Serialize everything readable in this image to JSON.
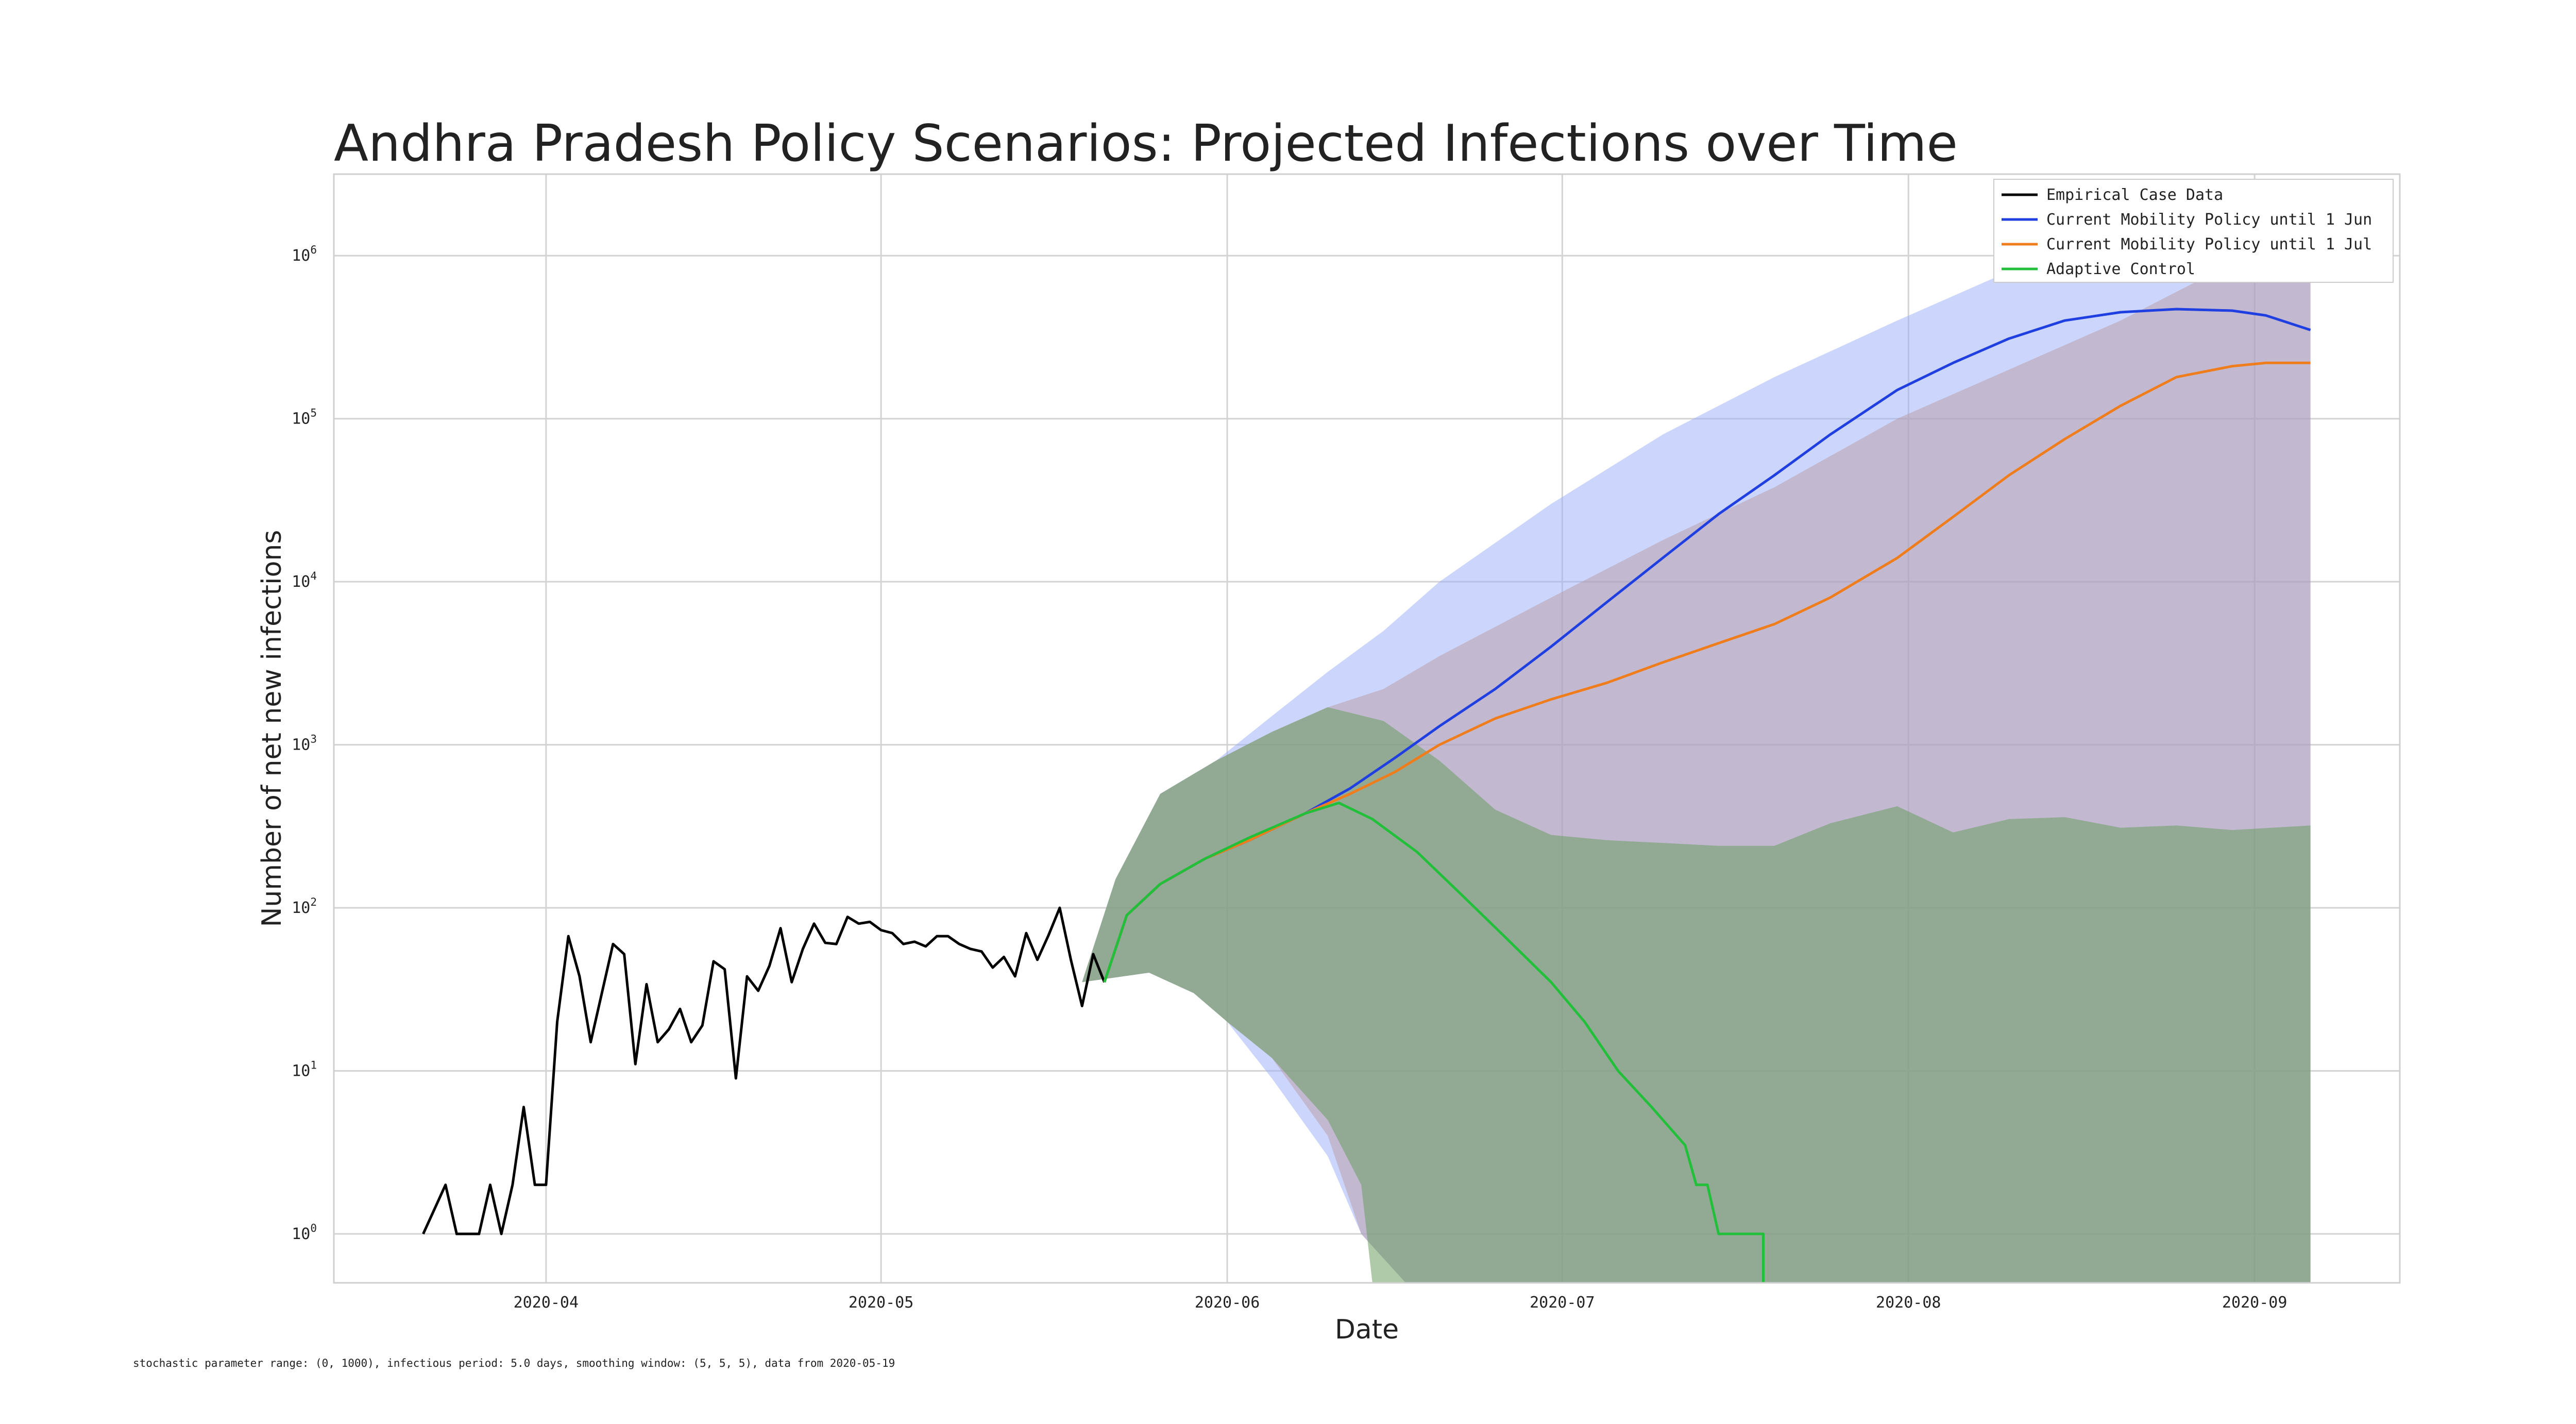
{
  "chart_data": {
    "type": "line",
    "title": "Andhra Pradesh Policy Scenarios: Projected Infections over Time",
    "xlabel": "Date",
    "ylabel": "Number of net new infections",
    "yscale": "log",
    "x_range": [
      "2020-03-13",
      "2020-09-14"
    ],
    "y_range_log10": [
      -0.3,
      6.5
    ],
    "grid": true,
    "legend_position": "top-right",
    "x_ticks": [
      "2020-04-01",
      "2020-05-01",
      "2020-06-01",
      "2020-07-01",
      "2020-08-01",
      "2020-09-01"
    ],
    "x_tick_labels": [
      "2020-04",
      "2020-05",
      "2020-06",
      "2020-07",
      "2020-08",
      "2020-09"
    ],
    "y_ticks_log10": [
      0,
      1,
      2,
      3,
      4,
      5,
      6
    ],
    "y_tick_base": "10",
    "y_tick_exponents": [
      "0",
      "1",
      "2",
      "3",
      "4",
      "5",
      "6"
    ],
    "footnote": "stochastic parameter range: (0, 1000), infectious period: 5.0 days, smoothing window: (5, 5, 5), data from 2020-05-19",
    "bands": [
      {
        "scenario": "Current Mobility Policy until 1 Jun",
        "color": "#9aaefa",
        "opacity": 0.5,
        "upper": [
          [
            "2020-05-19",
            35
          ],
          [
            "2020-05-22",
            150
          ],
          [
            "2020-05-26",
            500
          ],
          [
            "2020-05-31",
            800
          ],
          [
            "2020-06-05",
            1500
          ],
          [
            "2020-06-10",
            2800
          ],
          [
            "2020-06-15",
            5000
          ],
          [
            "2020-06-20",
            10000
          ],
          [
            "2020-06-30",
            30000
          ],
          [
            "2020-07-10",
            80000
          ],
          [
            "2020-07-20",
            180000
          ],
          [
            "2020-07-31",
            400000
          ],
          [
            "2020-08-10",
            800000
          ],
          [
            "2020-08-20",
            1200000
          ],
          [
            "2020-08-30",
            1300000
          ],
          [
            "2020-09-06",
            1300000
          ]
        ],
        "lower": [
          [
            "2020-05-19",
            35
          ],
          [
            "2020-05-25",
            40
          ],
          [
            "2020-05-29",
            30
          ],
          [
            "2020-06-01",
            20
          ],
          [
            "2020-06-05",
            9
          ],
          [
            "2020-06-10",
            3
          ],
          [
            "2020-06-13",
            1
          ],
          [
            "2020-06-17",
            0.5
          ],
          [
            "2020-09-06",
            0.5
          ]
        ]
      },
      {
        "scenario": "Current Mobility Policy until 1 Jul",
        "color": "#b89ba6",
        "opacity": 0.5,
        "upper": [
          [
            "2020-05-19",
            35
          ],
          [
            "2020-05-22",
            150
          ],
          [
            "2020-05-26",
            500
          ],
          [
            "2020-05-31",
            800
          ],
          [
            "2020-06-05",
            1200
          ],
          [
            "2020-06-10",
            1700
          ],
          [
            "2020-06-15",
            2200
          ],
          [
            "2020-06-20",
            3500
          ],
          [
            "2020-06-30",
            8000
          ],
          [
            "2020-07-10",
            18000
          ],
          [
            "2020-07-20",
            38000
          ],
          [
            "2020-07-31",
            100000
          ],
          [
            "2020-08-10",
            200000
          ],
          [
            "2020-08-20",
            400000
          ],
          [
            "2020-08-30",
            900000
          ],
          [
            "2020-09-06",
            1000000
          ]
        ],
        "lower": [
          [
            "2020-05-19",
            35
          ],
          [
            "2020-05-25",
            40
          ],
          [
            "2020-05-29",
            30
          ],
          [
            "2020-06-01",
            20
          ],
          [
            "2020-06-05",
            12
          ],
          [
            "2020-06-10",
            4
          ],
          [
            "2020-06-13",
            1
          ],
          [
            "2020-06-17",
            0.5
          ],
          [
            "2020-09-06",
            0.5
          ]
        ]
      },
      {
        "scenario": "Adaptive Control",
        "color": "#6c9e62",
        "opacity": 0.55,
        "upper": [
          [
            "2020-05-19",
            35
          ],
          [
            "2020-05-22",
            150
          ],
          [
            "2020-05-26",
            500
          ],
          [
            "2020-05-31",
            800
          ],
          [
            "2020-06-05",
            1200
          ],
          [
            "2020-06-10",
            1700
          ],
          [
            "2020-06-15",
            1400
          ],
          [
            "2020-06-20",
            800
          ],
          [
            "2020-06-25",
            400
          ],
          [
            "2020-06-30",
            280
          ],
          [
            "2020-07-05",
            260
          ],
          [
            "2020-07-10",
            250
          ],
          [
            "2020-07-15",
            240
          ],
          [
            "2020-07-20",
            240
          ],
          [
            "2020-07-25",
            330
          ],
          [
            "2020-07-31",
            420
          ],
          [
            "2020-08-05",
            290
          ],
          [
            "2020-08-10",
            350
          ],
          [
            "2020-08-15",
            360
          ],
          [
            "2020-08-20",
            310
          ],
          [
            "2020-08-25",
            320
          ],
          [
            "2020-08-30",
            300
          ],
          [
            "2020-09-06",
            320
          ]
        ],
        "lower": [
          [
            "2020-05-19",
            35
          ],
          [
            "2020-05-25",
            40
          ],
          [
            "2020-05-29",
            30
          ],
          [
            "2020-06-01",
            20
          ],
          [
            "2020-06-05",
            12
          ],
          [
            "2020-06-10",
            5
          ],
          [
            "2020-06-13",
            2
          ],
          [
            "2020-06-14",
            0.5
          ],
          [
            "2020-09-06",
            0.5
          ]
        ]
      }
    ],
    "series": [
      {
        "name": "Empirical Case Data",
        "color": "#000000",
        "points": [
          [
            "2020-03-21",
            1
          ],
          [
            "2020-03-23",
            2
          ],
          [
            "2020-03-24",
            1
          ],
          [
            "2020-03-26",
            1
          ],
          [
            "2020-03-27",
            2
          ],
          [
            "2020-03-28",
            1
          ],
          [
            "2020-03-29",
            2
          ],
          [
            "2020-03-30",
            6
          ],
          [
            "2020-03-31",
            2
          ],
          [
            "2020-04-01",
            2
          ],
          [
            "2020-04-02",
            20
          ],
          [
            "2020-04-03",
            67
          ],
          [
            "2020-04-04",
            38
          ],
          [
            "2020-04-05",
            15
          ],
          [
            "2020-04-06",
            30
          ],
          [
            "2020-04-07",
            60
          ],
          [
            "2020-04-08",
            52
          ],
          [
            "2020-04-09",
            11
          ],
          [
            "2020-04-10",
            34
          ],
          [
            "2020-04-11",
            15
          ],
          [
            "2020-04-12",
            18
          ],
          [
            "2020-04-13",
            24
          ],
          [
            "2020-04-14",
            15
          ],
          [
            "2020-04-15",
            19
          ],
          [
            "2020-04-16",
            47
          ],
          [
            "2020-04-17",
            42
          ],
          [
            "2020-04-18",
            9
          ],
          [
            "2020-04-19",
            38
          ],
          [
            "2020-04-20",
            31
          ],
          [
            "2020-04-21",
            44
          ],
          [
            "2020-04-22",
            75
          ],
          [
            "2020-04-23",
            35
          ],
          [
            "2020-04-24",
            56
          ],
          [
            "2020-04-25",
            80
          ],
          [
            "2020-04-26",
            61
          ],
          [
            "2020-04-27",
            60
          ],
          [
            "2020-04-28",
            88
          ],
          [
            "2020-04-29",
            80
          ],
          [
            "2020-04-30",
            82
          ],
          [
            "2020-05-01",
            73
          ],
          [
            "2020-05-02",
            70
          ],
          [
            "2020-05-03",
            60
          ],
          [
            "2020-05-04",
            62
          ],
          [
            "2020-05-05",
            58
          ],
          [
            "2020-05-06",
            67
          ],
          [
            "2020-05-07",
            67
          ],
          [
            "2020-05-08",
            60
          ],
          [
            "2020-05-09",
            56
          ],
          [
            "2020-05-10",
            54
          ],
          [
            "2020-05-11",
            43
          ],
          [
            "2020-05-12",
            50
          ],
          [
            "2020-05-13",
            38
          ],
          [
            "2020-05-14",
            70
          ],
          [
            "2020-05-15",
            48
          ],
          [
            "2020-05-16",
            68
          ],
          [
            "2020-05-17",
            100
          ],
          [
            "2020-05-18",
            48
          ],
          [
            "2020-05-19",
            25
          ],
          [
            "2020-05-20",
            52
          ],
          [
            "2020-05-21",
            35
          ]
        ]
      },
      {
        "name": "Current Mobility Policy until 1 Jun",
        "color": "#1f3fe0",
        "points": [
          [
            "2020-05-21",
            35
          ],
          [
            "2020-05-23",
            90
          ],
          [
            "2020-05-26",
            140
          ],
          [
            "2020-05-30",
            200
          ],
          [
            "2020-06-03",
            260
          ],
          [
            "2020-06-08",
            380
          ],
          [
            "2020-06-12",
            540
          ],
          [
            "2020-06-16",
            830
          ],
          [
            "2020-06-20",
            1300
          ],
          [
            "2020-06-25",
            2200
          ],
          [
            "2020-06-30",
            4000
          ],
          [
            "2020-07-05",
            7500
          ],
          [
            "2020-07-10",
            14000
          ],
          [
            "2020-07-15",
            26000
          ],
          [
            "2020-07-20",
            45000
          ],
          [
            "2020-07-25",
            80000
          ],
          [
            "2020-07-31",
            150000
          ],
          [
            "2020-08-05",
            220000
          ],
          [
            "2020-08-10",
            310000
          ],
          [
            "2020-08-15",
            400000
          ],
          [
            "2020-08-20",
            450000
          ],
          [
            "2020-08-25",
            470000
          ],
          [
            "2020-08-30",
            460000
          ],
          [
            "2020-09-02",
            430000
          ],
          [
            "2020-09-06",
            350000
          ]
        ]
      },
      {
        "name": "Current Mobility Policy until 1 Jul",
        "color": "#f07d1c",
        "points": [
          [
            "2020-05-21",
            35
          ],
          [
            "2020-05-23",
            90
          ],
          [
            "2020-05-26",
            140
          ],
          [
            "2020-05-30",
            200
          ],
          [
            "2020-06-03",
            260
          ],
          [
            "2020-06-08",
            380
          ],
          [
            "2020-06-12",
            500
          ],
          [
            "2020-06-16",
            680
          ],
          [
            "2020-06-20",
            1000
          ],
          [
            "2020-06-25",
            1450
          ],
          [
            "2020-06-30",
            1900
          ],
          [
            "2020-07-05",
            2400
          ],
          [
            "2020-07-10",
            3200
          ],
          [
            "2020-07-15",
            4200
          ],
          [
            "2020-07-20",
            5500
          ],
          [
            "2020-07-25",
            8000
          ],
          [
            "2020-07-31",
            14000
          ],
          [
            "2020-08-05",
            25000
          ],
          [
            "2020-08-10",
            45000
          ],
          [
            "2020-08-15",
            75000
          ],
          [
            "2020-08-20",
            120000
          ],
          [
            "2020-08-25",
            180000
          ],
          [
            "2020-08-30",
            210000
          ],
          [
            "2020-09-02",
            220000
          ],
          [
            "2020-09-06",
            220000
          ]
        ]
      },
      {
        "name": "Adaptive Control",
        "color": "#22c03a",
        "points": [
          [
            "2020-05-21",
            35
          ],
          [
            "2020-05-23",
            90
          ],
          [
            "2020-05-26",
            140
          ],
          [
            "2020-05-30",
            200
          ],
          [
            "2020-06-03",
            270
          ],
          [
            "2020-06-08",
            380
          ],
          [
            "2020-06-11",
            440
          ],
          [
            "2020-06-14",
            350
          ],
          [
            "2020-06-18",
            220
          ],
          [
            "2020-06-22",
            120
          ],
          [
            "2020-06-26",
            65
          ],
          [
            "2020-06-30",
            35
          ],
          [
            "2020-07-03",
            20
          ],
          [
            "2020-07-06",
            10
          ],
          [
            "2020-07-09",
            6
          ],
          [
            "2020-07-12",
            3.5
          ],
          [
            "2020-07-13",
            2
          ],
          [
            "2020-07-14",
            2
          ],
          [
            "2020-07-15",
            1
          ],
          [
            "2020-07-19",
            1
          ],
          [
            "2020-07-19",
            0.5
          ]
        ]
      }
    ]
  }
}
